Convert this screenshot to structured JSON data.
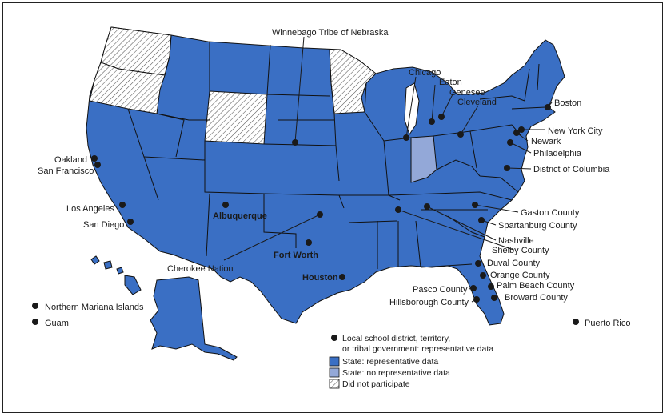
{
  "colors": {
    "state_representative": "#3a6fc4",
    "state_no_representative": "#93a8d8",
    "did_not_participate": "#ffffff",
    "outline": "#111111",
    "marker": "#1a1a1a"
  },
  "states": {
    "washington": "did_not_participate",
    "oregon": "did_not_participate",
    "wyoming": "did_not_participate",
    "minnesota": "did_not_participate",
    "indiana": "state_no_representative"
  },
  "locations": [
    {
      "name": "Winnebago Tribe of Nebraska"
    },
    {
      "name": "Chicago"
    },
    {
      "name": "Eaton"
    },
    {
      "name": "Genesee"
    },
    {
      "name": "Cleveland"
    },
    {
      "name": "Boston"
    },
    {
      "name": "New York City"
    },
    {
      "name": "Newark"
    },
    {
      "name": "Philadelphia"
    },
    {
      "name": "District of Columbia"
    },
    {
      "name": "Oakland"
    },
    {
      "name": "San Francisco"
    },
    {
      "name": "Los Angeles"
    },
    {
      "name": "San Diego"
    },
    {
      "name": "Albuquerque"
    },
    {
      "name": "Cherokee Nation"
    },
    {
      "name": "Fort Worth"
    },
    {
      "name": "Houston"
    },
    {
      "name": "Gaston County"
    },
    {
      "name": "Spartanburg County"
    },
    {
      "name": "Nashville"
    },
    {
      "name": "Shelby County"
    },
    {
      "name": "Duval County"
    },
    {
      "name": "Orange County"
    },
    {
      "name": "Palm Beach County"
    },
    {
      "name": "Broward County"
    },
    {
      "name": "Pasco County"
    },
    {
      "name": "Hillsborough County"
    },
    {
      "name": "Northern Mariana Islands"
    },
    {
      "name": "Guam"
    },
    {
      "name": "Puerto Rico"
    }
  ],
  "legend": {
    "local": "Local school district, territory,",
    "local_line2": "or tribal government: representative data",
    "state_rep": "State: representative data",
    "state_norep": "State: no representative data",
    "dnp": "Did not participate"
  }
}
